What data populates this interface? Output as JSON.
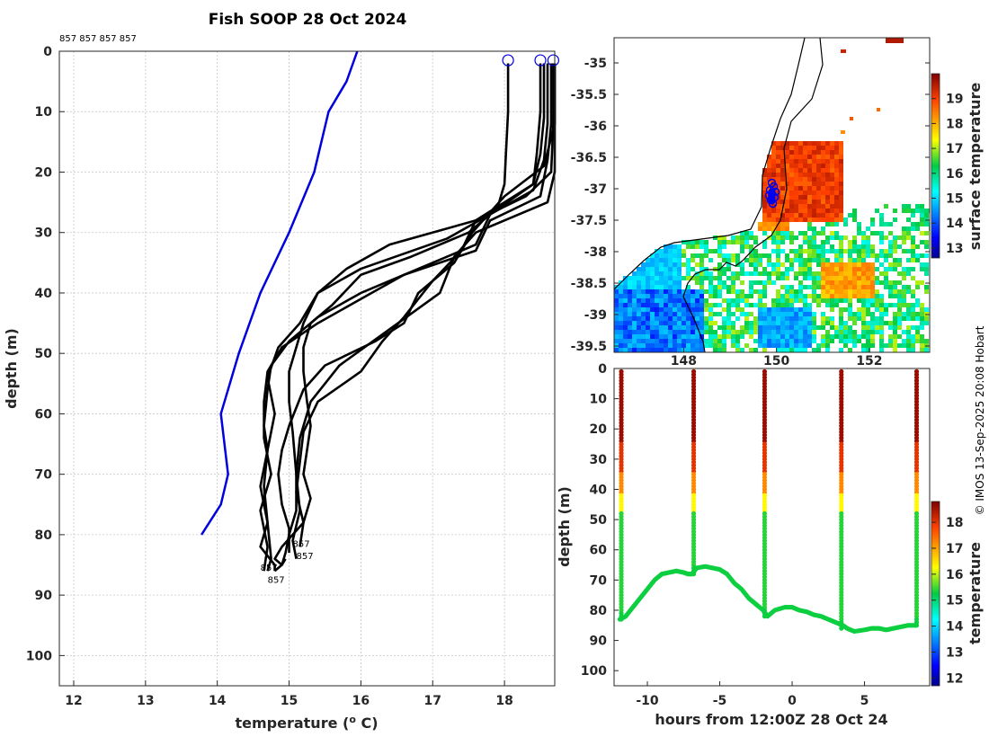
{
  "title": "Fish SOOP 28 Oct 2024",
  "profile_ids_label": "857 857 857 857",
  "credit": "© IMOS 13-Sep-2025 20:08 Hobart",
  "chart_data": [
    {
      "type": "line",
      "name": "profile-plot",
      "xlabel": "temperature (° C)",
      "ylabel": "depth (m)",
      "xlim": [
        11.8,
        18.7
      ],
      "ylim": [
        105,
        0
      ],
      "xticks": [
        12,
        13,
        14,
        15,
        16,
        17,
        18
      ],
      "yticks": [
        0,
        10,
        20,
        30,
        40,
        50,
        60,
        70,
        80,
        90,
        100
      ],
      "reference_profile": {
        "color": "#0000dd",
        "temperature": [
          15.95,
          15.8,
          15.55,
          15.35,
          15.0,
          14.6,
          14.3,
          14.05,
          14.15,
          14.05,
          13.78
        ],
        "depth": [
          0,
          5,
          10,
          20,
          30,
          40,
          50,
          60,
          70,
          75,
          80
        ]
      },
      "series": [
        {
          "name": "cast1",
          "temperature": [
            18.05,
            18.05,
            18.02,
            18.0,
            17.9,
            17.5,
            16.7,
            16.0,
            15.6,
            15.3,
            15.2,
            15.2,
            15.25,
            15.3,
            15.25,
            15.2,
            15.3,
            15.2,
            14.9,
            14.8,
            14.9,
            14.95
          ],
          "depth": [
            2,
            10,
            17,
            22,
            26,
            30,
            34,
            37,
            42,
            45,
            49,
            53,
            58,
            62,
            66,
            70,
            74,
            78,
            82,
            84,
            85,
            84
          ]
        },
        {
          "name": "cast2",
          "temperature": [
            18.5,
            18.5,
            18.45,
            18.4,
            17.6,
            16.4,
            15.8,
            15.4,
            15.2,
            15.1,
            15.0,
            15.0,
            15.05,
            15.1,
            15.1,
            15.0,
            14.95,
            14.9,
            14.8
          ],
          "depth": [
            2,
            10,
            17,
            22,
            28,
            32,
            36,
            40,
            45,
            49,
            53,
            58,
            63,
            70,
            76,
            80,
            83,
            85,
            86
          ]
        },
        {
          "name": "cast3",
          "temperature": [
            18.55,
            18.55,
            18.5,
            18.4,
            17.8,
            17.2,
            16.0,
            15.4,
            15.15,
            14.85,
            14.7,
            14.8,
            14.7,
            14.65,
            14.7,
            14.6,
            14.8,
            14.8
          ],
          "depth": [
            2,
            11,
            17,
            22,
            27,
            31,
            36,
            40,
            45,
            49,
            54,
            60,
            66,
            72,
            78,
            82,
            85,
            86
          ]
        },
        {
          "name": "cast4",
          "temperature": [
            18.6,
            18.6,
            18.55,
            18.4,
            17.8,
            17.6,
            16.8,
            16.0,
            15.4,
            15.0,
            14.75,
            14.7,
            14.65,
            14.7,
            14.6,
            14.7,
            14.75,
            14.7
          ],
          "depth": [
            2,
            12,
            18,
            23,
            27,
            32,
            36,
            40,
            44,
            48,
            52,
            56,
            62,
            66,
            72,
            78,
            84,
            86
          ]
        },
        {
          "name": "cast5",
          "temperature": [
            18.65,
            18.65,
            18.6,
            18.5,
            17.8,
            17.6,
            16.6,
            16.0,
            15.4,
            14.9,
            14.7,
            14.65,
            14.65,
            14.75,
            14.6,
            14.7,
            14.65
          ],
          "depth": [
            2,
            12,
            18,
            24,
            28,
            33,
            37,
            41,
            45,
            49,
            53,
            58,
            64,
            70,
            76,
            82,
            86
          ]
        },
        {
          "name": "cast6",
          "temperature": [
            18.7,
            18.7,
            18.55,
            18.0,
            17.55,
            17.3,
            16.8,
            16.6,
            16.2,
            15.5,
            15.2,
            15.0,
            14.9,
            14.85,
            14.9,
            15.0,
            15.0
          ],
          "depth": [
            2,
            12,
            19,
            24,
            30,
            35,
            40,
            45,
            48,
            52,
            56,
            62,
            66,
            70,
            75,
            79,
            83
          ]
        },
        {
          "name": "cast7",
          "temperature": [
            18.68,
            18.68,
            18.65,
            18.3,
            17.6,
            17.4,
            17.0,
            16.6,
            16.3,
            16.0,
            15.4,
            15.2,
            15.15,
            15.1,
            15.2,
            15.15
          ],
          "depth": [
            2,
            12,
            20,
            24,
            28,
            33,
            38,
            44,
            48,
            53,
            58,
            63,
            68,
            73,
            78,
            82
          ]
        },
        {
          "name": "cast8",
          "temperature": [
            18.7,
            18.7,
            18.7,
            18.6,
            17.6,
            17.3,
            17.1,
            16.4,
            15.7,
            15.3,
            15.15,
            15.1,
            15.15,
            15.05,
            15.1
          ],
          "depth": [
            2,
            12,
            20,
            25,
            30,
            34,
            40,
            46,
            52,
            58,
            64,
            70,
            76,
            81,
            84
          ]
        }
      ],
      "surface_markers_temperature": [
        18.05,
        18.5,
        18.68
      ],
      "profile_labels": [
        "857",
        "857",
        "857",
        "857"
      ]
    },
    {
      "type": "heatmap",
      "name": "sst-map",
      "colorbar_label": "surface temperature",
      "colorbar_ticks": [
        13,
        14,
        15,
        16,
        17,
        18,
        19
      ],
      "colorbar_range": [
        12.6,
        20
      ],
      "yticks": [
        "-35",
        "-35.5",
        "-36",
        "-36.5",
        "-37",
        "-37.5",
        "-38",
        "-38.5",
        "-39",
        "-39.5"
      ],
      "xticks": [
        "148",
        "150",
        "152"
      ],
      "lon_range": [
        146.5,
        153.3
      ],
      "lat_range": [
        -39.6,
        -34.6
      ],
      "vessel_position": [
        149.9,
        -37.05
      ]
    },
    {
      "type": "scatter",
      "name": "depth-time-plot",
      "xlabel": "hours from 12:00Z 28 Oct 24",
      "ylabel": "depth (m)",
      "colorbar_label": "temperature",
      "colorbar_ticks": [
        12,
        13,
        14,
        15,
        16,
        17,
        18
      ],
      "colorbar_range": [
        11.7,
        18.8
      ],
      "xlim": [
        -12.3,
        9.5
      ],
      "ylim": [
        105,
        0
      ],
      "xticks": [
        -10,
        -5,
        0,
        5
      ],
      "xtick_labels": [
        "-10",
        "-5",
        "0",
        "5"
      ],
      "yticks": [
        0,
        10,
        20,
        30,
        40,
        50,
        60,
        70,
        80,
        90,
        100
      ],
      "bottom_track": {
        "hours": [
          -11.9,
          -11.5,
          -11.0,
          -10.5,
          -10.0,
          -9.5,
          -9.0,
          -8.5,
          -8.0,
          -7.5,
          -7.2,
          -6.9,
          -6.6,
          -6.0,
          -5.5,
          -5.0,
          -4.5,
          -4.0,
          -3.5,
          -3.0,
          -2.5,
          -2.0,
          -1.7,
          -1.2,
          -0.5,
          0.0,
          0.5,
          1.0,
          1.5,
          2.0,
          2.5,
          3.0,
          3.5,
          3.8,
          4.3,
          5.0,
          5.5,
          6.0,
          6.5,
          7.0,
          7.5,
          8.0,
          8.6
        ],
        "depth": [
          83,
          82,
          79,
          76,
          73,
          70,
          68,
          67.5,
          67,
          67.5,
          68,
          68,
          66,
          65.5,
          66,
          66.5,
          68,
          71,
          73,
          76,
          78,
          80,
          82,
          80,
          79,
          79,
          80,
          80.5,
          81.5,
          82,
          83,
          84,
          85,
          86,
          87,
          86.5,
          86,
          86,
          86.5,
          86,
          85.5,
          85,
          85
        ]
      },
      "casts": [
        {
          "hours": -11.8,
          "bottom": 83
        },
        {
          "hours": -6.8,
          "bottom": 68
        },
        {
          "hours": -1.9,
          "bottom": 82
        },
        {
          "hours": 3.4,
          "bottom": 86
        },
        {
          "hours": 8.6,
          "bottom": 85
        }
      ]
    }
  ]
}
